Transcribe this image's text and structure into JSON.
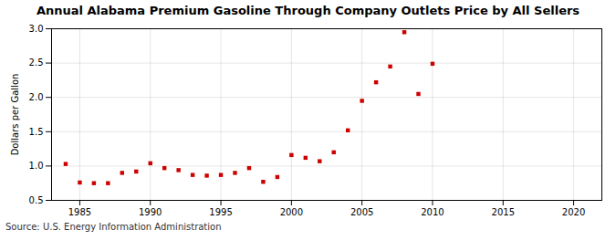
{
  "chart_data": {
    "type": "scatter",
    "title": "Annual Alabama Premium Gasoline Through Company Outlets Price by All Sellers",
    "ylabel": "Dollars per Gallon",
    "source": "Source: U.S. Energy Information Administration",
    "x": [
      1984,
      1985,
      1986,
      1987,
      1988,
      1989,
      1990,
      1991,
      1992,
      1993,
      1994,
      1995,
      1996,
      1997,
      1998,
      1999,
      2000,
      2001,
      2002,
      2003,
      2004,
      2005,
      2006,
      2007,
      2008,
      2009,
      2010
    ],
    "values": [
      1.03,
      0.76,
      0.75,
      0.75,
      0.9,
      0.92,
      1.04,
      0.97,
      0.94,
      0.87,
      0.86,
      0.87,
      0.9,
      0.97,
      0.77,
      0.84,
      1.16,
      1.12,
      1.07,
      1.2,
      1.52,
      1.95,
      2.22,
      2.45,
      2.95,
      2.05,
      2.49
    ],
    "color": "#cc0000",
    "marker": "square",
    "xlim": [
      1983,
      2022
    ],
    "ylim": [
      0.5,
      3.0
    ],
    "xticks": [
      1985,
      1990,
      1995,
      2000,
      2005,
      2010,
      2015,
      2020
    ],
    "yticks": [
      0.5,
      {
        "value": 1,
        "label": "1.0"
      },
      1.5,
      {
        "value": 2,
        "label": "2.0"
      },
      2.5,
      {
        "value": 3,
        "label": "3.0"
      }
    ],
    "grid": true
  }
}
